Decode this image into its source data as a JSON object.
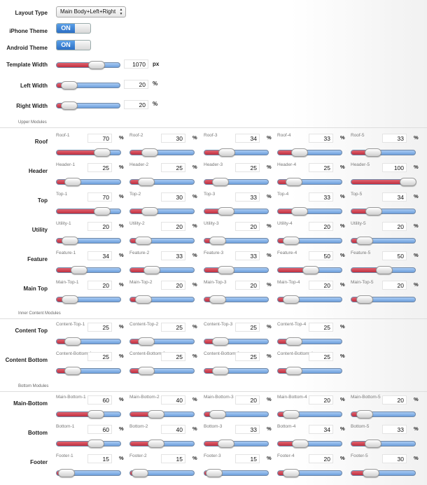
{
  "top_settings": {
    "layout_type": {
      "label": "Layout Type",
      "value": "Main Body+Left+Right"
    },
    "iphone_theme": {
      "label": "iPhone Theme",
      "value": "ON"
    },
    "android_theme": {
      "label": "Android Theme",
      "value": "ON"
    },
    "template_width": {
      "label": "Template Width",
      "value": "1070",
      "unit": "px",
      "level": 0.62
    },
    "left_width": {
      "label": "Left Width",
      "value": "20",
      "unit": "%",
      "level": 0.2
    },
    "right_width": {
      "label": "Right Width",
      "value": "20",
      "unit": "%",
      "level": 0.2
    }
  },
  "sections": [
    {
      "title": "Upper Modules",
      "rows": [
        {
          "label": "Roof",
          "cells": [
            {
              "name": "Roof-1",
              "value": 70
            },
            {
              "name": "Roof-2",
              "value": 30
            },
            {
              "name": "Roof-3",
              "value": 34
            },
            {
              "name": "Roof-4",
              "value": 33
            },
            {
              "name": "Roof-5",
              "value": 33
            }
          ]
        },
        {
          "label": "Header",
          "cells": [
            {
              "name": "Header-1",
              "value": 25
            },
            {
              "name": "Header-2",
              "value": 25
            },
            {
              "name": "Header-3",
              "value": 25
            },
            {
              "name": "Header-4",
              "value": 25
            },
            {
              "name": "Header-5",
              "value": 100
            }
          ]
        },
        {
          "label": "Top",
          "cells": [
            {
              "name": "Top-1",
              "value": 70
            },
            {
              "name": "Top-2",
              "value": 30
            },
            {
              "name": "Top-3",
              "value": 33
            },
            {
              "name": "Top-4",
              "value": 33
            },
            {
              "name": "Top-5",
              "value": 34
            }
          ]
        },
        {
          "label": "Utility",
          "cells": [
            {
              "name": "Utility-1",
              "value": 20
            },
            {
              "name": "Utility-2",
              "value": 20
            },
            {
              "name": "Utility-3",
              "value": 20
            },
            {
              "name": "Utility-4",
              "value": 20
            },
            {
              "name": "Utility-5",
              "value": 20
            }
          ]
        },
        {
          "label": "Feature",
          "cells": [
            {
              "name": "Feature-1",
              "value": 34
            },
            {
              "name": "Feature-2",
              "value": 33
            },
            {
              "name": "Feature-3",
              "value": 33
            },
            {
              "name": "Feature-4",
              "value": 50
            },
            {
              "name": "Feature-5",
              "value": 50
            }
          ]
        },
        {
          "label": "Main Top",
          "cells": [
            {
              "name": "Main-Top-1",
              "value": 20
            },
            {
              "name": "Main-Top-2",
              "value": 20
            },
            {
              "name": "Main-Top-3",
              "value": 20
            },
            {
              "name": "Main-Top-4",
              "value": 20
            },
            {
              "name": "Main-Top-5",
              "value": 20
            }
          ]
        }
      ]
    },
    {
      "title": "Inner Content Modules",
      "rows": [
        {
          "label": "Content Top",
          "cells": [
            {
              "name": "Content-Top-1",
              "value": 25
            },
            {
              "name": "Content-Top-2",
              "value": 25
            },
            {
              "name": "Content-Top-3",
              "value": 25
            },
            {
              "name": "Content-Top-4",
              "value": 25
            }
          ]
        },
        {
          "label": "Content Bottom",
          "cells": [
            {
              "name": "Content-Bottom-1",
              "value": 25
            },
            {
              "name": "Content-Bottom-2",
              "value": 25
            },
            {
              "name": "Content-Bottom-3",
              "value": 25
            },
            {
              "name": "Content-Bottom-4",
              "value": 25
            }
          ]
        }
      ]
    },
    {
      "title": "Bottom Modules",
      "rows": [
        {
          "label": "Main-Bottom",
          "cells": [
            {
              "name": "Main-Bottom-1",
              "value": 60
            },
            {
              "name": "Main-Bottom-2",
              "value": 40
            },
            {
              "name": "Main-Bottom-3",
              "value": 20
            },
            {
              "name": "Main-Bottom-4",
              "value": 20
            },
            {
              "name": "Main-Bottom-5",
              "value": 20
            }
          ]
        },
        {
          "label": "Bottom",
          "cells": [
            {
              "name": "Bottom-1",
              "value": 60
            },
            {
              "name": "Bottom-2",
              "value": 40
            },
            {
              "name": "Bottom-3",
              "value": 33
            },
            {
              "name": "Bottom-4",
              "value": 34
            },
            {
              "name": "Bottom-5",
              "value": 33
            }
          ]
        },
        {
          "label": "Footer",
          "cells": [
            {
              "name": "Footer-1",
              "value": 15
            },
            {
              "name": "Footer-2",
              "value": 15
            },
            {
              "name": "Footer-3",
              "value": 15
            },
            {
              "name": "Footer-4",
              "value": 20
            },
            {
              "name": "Footer-5",
              "value": 30
            }
          ]
        }
      ]
    }
  ],
  "unit_symbol": "%",
  "colors": {
    "slider_fill": "#c93a48",
    "slider_track": "#7fb0ea",
    "toggle_on": "#2c6fc4"
  }
}
